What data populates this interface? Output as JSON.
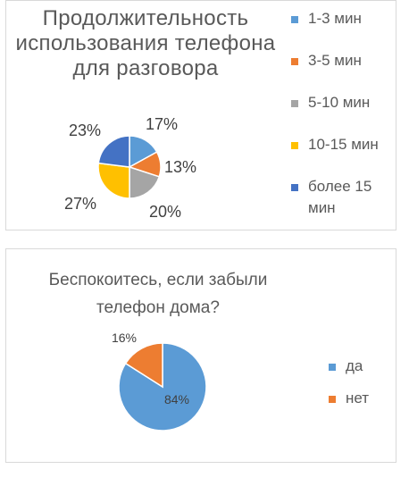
{
  "charts": [
    {
      "title": "Продолжительность использования телефона для разговора",
      "legend": [
        {
          "label": "1-3 мин",
          "color": "#5b9bd5"
        },
        {
          "label": "3-5 мин",
          "color": "#ed7d31"
        },
        {
          "label": "5-10 мин",
          "color": "#a5a5a5"
        },
        {
          "label": "10-15 мин",
          "color": "#ffc000"
        },
        {
          "label": "более 15 мин",
          "color": "#4472c4"
        }
      ]
    },
    {
      "title": "Беспокоитесь, если забыли телефон дома?",
      "legend": [
        {
          "label": "да",
          "color": "#5b9bd5"
        },
        {
          "label": "нет",
          "color": "#ed7d31"
        }
      ]
    }
  ],
  "chart_data": [
    {
      "type": "pie",
      "title": "Продолжительность использования телефона для разговора",
      "categories": [
        "1-3 мин",
        "3-5 мин",
        "5-10 мин",
        "10-15 мин",
        "более 15 мин"
      ],
      "values": [
        17,
        13,
        20,
        27,
        23
      ],
      "labels": [
        "17%",
        "13%",
        "20%",
        "27%",
        "23%"
      ],
      "colors": [
        "#5b9bd5",
        "#ed7d31",
        "#a5a5a5",
        "#ffc000",
        "#4472c4"
      ],
      "legend_position": "right",
      "data_labels": "outside"
    },
    {
      "type": "pie",
      "title": "Беспокоитесь, если забыли телефон дома?",
      "categories": [
        "да",
        "нет"
      ],
      "values": [
        84,
        16
      ],
      "labels": [
        "84%",
        "16%"
      ],
      "colors": [
        "#5b9bd5",
        "#ed7d31"
      ],
      "legend_position": "right",
      "data_labels": "mixed"
    }
  ]
}
